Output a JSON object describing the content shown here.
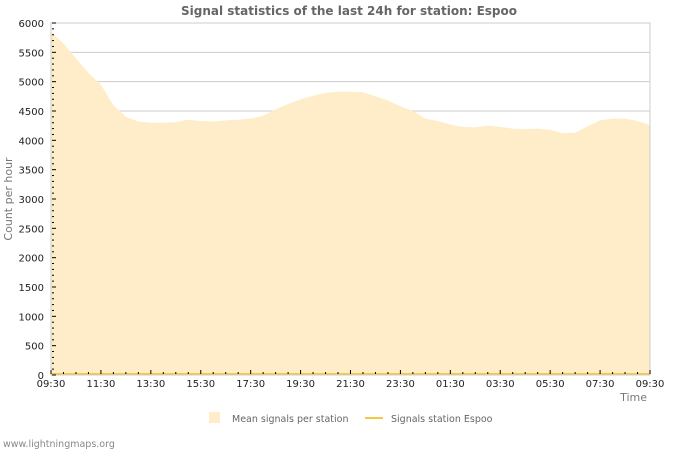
{
  "title": "Signal statistics of the last 24h for station: Espoo",
  "footer": "www.lightningmaps.org",
  "colors": {
    "mean_fill": "#ffedca",
    "station_line": "#f5c842",
    "grid": "#cccccc",
    "frame": "#cccccc",
    "text": "#222222"
  },
  "legend": [
    {
      "label": "Mean signals per station",
      "type": "area"
    },
    {
      "label": "Signals station Espoo",
      "type": "line"
    }
  ],
  "chart_data": {
    "type": "area",
    "title": "Signal statistics of the last 24h for station: Espoo",
    "xlabel": "Time",
    "ylabel": "Count per hour",
    "ylim": [
      0,
      6000
    ],
    "yticks": [
      0,
      500,
      1000,
      1500,
      2000,
      2500,
      3000,
      3500,
      4000,
      4500,
      5000,
      5500,
      6000
    ],
    "xticks": [
      "09:30",
      "11:30",
      "13:30",
      "15:30",
      "17:30",
      "19:30",
      "21:30",
      "23:30",
      "01:30",
      "03:30",
      "05:30",
      "07:30",
      "09:30"
    ],
    "grid": true,
    "legend_position": "bottom",
    "x": [
      "09:30",
      "10:00",
      "10:30",
      "11:00",
      "11:30",
      "12:00",
      "12:30",
      "13:00",
      "13:30",
      "14:00",
      "14:30",
      "15:00",
      "15:30",
      "16:00",
      "16:30",
      "17:00",
      "17:30",
      "18:00",
      "18:30",
      "19:00",
      "19:30",
      "20:00",
      "20:30",
      "21:00",
      "21:30",
      "22:00",
      "22:30",
      "23:00",
      "23:30",
      "00:00",
      "00:30",
      "01:00",
      "01:30",
      "02:00",
      "02:30",
      "03:00",
      "03:30",
      "04:00",
      "04:30",
      "05:00",
      "05:30",
      "06:00",
      "06:30",
      "07:00",
      "07:30",
      "08:00",
      "08:30",
      "09:00",
      "09:30"
    ],
    "series": [
      {
        "name": "Mean signals per station",
        "values": [
          5850,
          5650,
          5400,
          5150,
          4950,
          4600,
          4400,
          4320,
          4300,
          4300,
          4310,
          4350,
          4330,
          4320,
          4340,
          4350,
          4370,
          4420,
          4530,
          4620,
          4700,
          4760,
          4810,
          4830,
          4830,
          4820,
          4750,
          4680,
          4580,
          4500,
          4370,
          4330,
          4270,
          4230,
          4220,
          4250,
          4230,
          4200,
          4190,
          4200,
          4180,
          4120,
          4130,
          4240,
          4340,
          4370,
          4370,
          4330,
          4260
        ]
      },
      {
        "name": "Signals station Espoo",
        "values": [
          0,
          0,
          0,
          0,
          0,
          0,
          0,
          0,
          0,
          0,
          0,
          0,
          0,
          0,
          0,
          0,
          0,
          0,
          0,
          0,
          0,
          0,
          0,
          0,
          0,
          0,
          0,
          0,
          0,
          0,
          0,
          0,
          0,
          0,
          0,
          0,
          0,
          0,
          0,
          0,
          0,
          0,
          0,
          0,
          0,
          0,
          0,
          0,
          0
        ]
      }
    ]
  }
}
